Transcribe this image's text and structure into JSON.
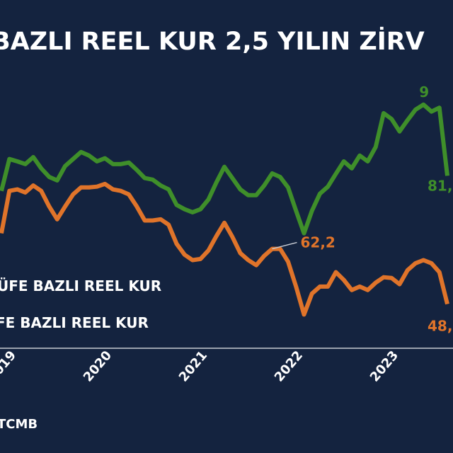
{
  "chart_data": {
    "type": "line",
    "title": "BAZLI REEL KUR 2,5 YILIN ZİRV",
    "source": "TCMB",
    "categories": [
      null,
      "2019",
      null,
      null,
      null,
      null,
      null,
      null,
      null,
      null,
      null,
      null,
      null,
      "2020",
      null,
      null,
      null,
      null,
      null,
      null,
      null,
      null,
      null,
      null,
      null,
      "2021",
      null,
      null,
      null,
      null,
      null,
      null,
      null,
      null,
      null,
      null,
      null,
      "2022",
      null,
      null,
      null,
      null,
      null,
      null,
      null,
      null,
      null,
      null,
      null,
      "2023",
      null,
      null,
      null,
      null,
      null,
      null,
      null
    ],
    "ylim": [
      37,
      108
    ],
    "series": [
      {
        "name": "ÜFE BAZLI REEL KUR",
        "color": "#3f8f2a",
        "values": [
          77.1,
          85.3,
          84.7,
          84.0,
          85.8,
          82.9,
          80.7,
          79.8,
          83.5,
          85.3,
          87.1,
          86.2,
          84.7,
          85.5,
          84.0,
          84.0,
          84.4,
          82.5,
          80.4,
          80.0,
          78.5,
          77.5,
          73.5,
          72.4,
          71.6,
          72.4,
          74.9,
          79.3,
          83.3,
          80.4,
          77.5,
          76.0,
          76.0,
          78.5,
          81.6,
          80.7,
          78.0,
          72.0,
          66.2,
          72.0,
          76.4,
          78.2,
          81.5,
          84.7,
          82.9,
          86.2,
          84.7,
          88.4,
          97.1,
          95.6,
          92.4,
          95.3,
          98.0,
          99.3,
          97.5,
          98.5,
          81.0
        ]
      },
      {
        "name": "FE BAZLI REEL KUR",
        "color": "#e0742a",
        "values": [
          66.2,
          77.1,
          77.5,
          76.7,
          78.5,
          77.1,
          73.1,
          69.8,
          73.1,
          76.2,
          78.0,
          78.0,
          78.2,
          78.9,
          77.5,
          77.1,
          76.2,
          73.1,
          69.5,
          69.5,
          69.8,
          68.4,
          63.5,
          60.7,
          59.3,
          59.6,
          61.8,
          65.5,
          68.9,
          65.3,
          61.1,
          59.3,
          58.0,
          60.4,
          62.2,
          62.2,
          58.9,
          52.5,
          45.3,
          50.7,
          52.5,
          52.5,
          56.2,
          54.2,
          51.6,
          52.5,
          51.6,
          53.5,
          54.9,
          54.7,
          53.1,
          56.7,
          58.5,
          59.3,
          58.5,
          56.2,
          48.0
        ]
      }
    ],
    "annotations": [
      {
        "text": "9",
        "series": 0,
        "index": 53
      },
      {
        "text": "81,",
        "series": 0,
        "index": 56
      },
      {
        "text": "62,2",
        "series": 1,
        "index": 34
      },
      {
        "text": "48,",
        "series": 1,
        "index": 56
      }
    ]
  }
}
